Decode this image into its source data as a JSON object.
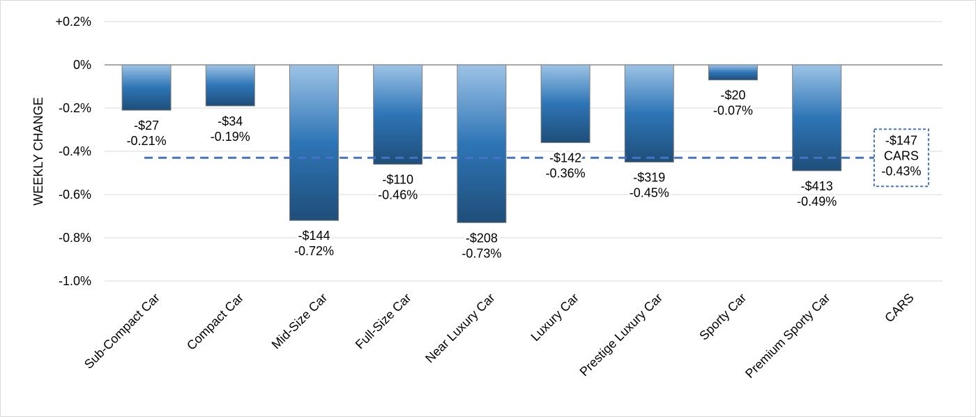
{
  "chart_data": {
    "type": "bar",
    "title": "",
    "xlabel": "",
    "ylabel": "WEEKLY CHANGE",
    "ylim": [
      -1.0,
      0.2
    ],
    "yticks": [
      0.2,
      0.0,
      -0.2,
      -0.4,
      -0.6,
      -0.8,
      -1.0
    ],
    "ytick_labels": [
      "+0.2%",
      "0%",
      "-0.2%",
      "-0.4%",
      "-0.6%",
      "-0.8%",
      "-1.0%"
    ],
    "grid": true,
    "categories": [
      "Sub-Compact Car",
      "Compact Car",
      "Mid-Size Car",
      "Full-Size Car",
      "Near Luxury Car",
      "Luxury Car",
      "Prestige Luxury Car",
      "Sporty Car",
      "Premium Sporty Car",
      "CARS"
    ],
    "values": [
      -0.21,
      -0.19,
      -0.72,
      -0.46,
      -0.73,
      -0.36,
      -0.45,
      -0.07,
      -0.49,
      null
    ],
    "dollar_labels": [
      "-$27",
      "-$34",
      "-$144",
      "-$110",
      "-$208",
      "-$142",
      "-$319",
      "-$20",
      "-$413"
    ],
    "percent_labels": [
      "-0.21%",
      "-0.19%",
      "-0.72%",
      "-0.46%",
      "-0.73%",
      "-0.36%",
      "-0.45%",
      "-0.07%",
      "-0.49%"
    ],
    "reference_line": {
      "value": -0.43,
      "style": "dashed",
      "label_lines": [
        "-$147",
        "CARS",
        "-0.43%"
      ]
    },
    "colors": {
      "bar_top": "#9dc3e6",
      "bar_mid": "#2e75b6",
      "bar_bottom": "#1f4e79",
      "reference": "#4472c4",
      "grid": "#d9d9d9"
    }
  }
}
